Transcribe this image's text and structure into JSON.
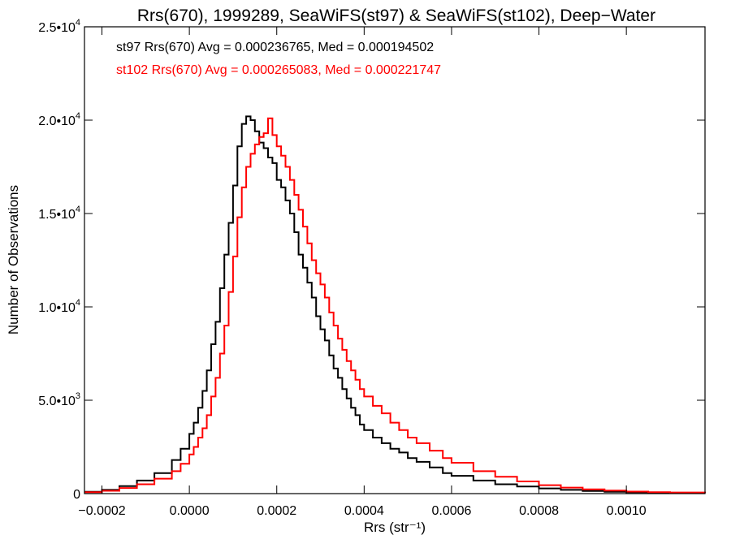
{
  "chart_data": {
    "type": "line",
    "title": "Rrs(670), 1999289, SeaWiFS(st97) & SeaWiFS(st102), Deep−Water",
    "xlabel": "Rrs (str⁻¹)",
    "ylabel": "Number of Observations",
    "xlim": [
      -0.00024,
      0.00118
    ],
    "ylim": [
      0,
      25000
    ],
    "x_ticks": [
      {
        "value": -0.0002,
        "label": "−0.0002"
      },
      {
        "value": 0.0,
        "label": "0.0000"
      },
      {
        "value": 0.0002,
        "label": "0.0002"
      },
      {
        "value": 0.0004,
        "label": "0.0004"
      },
      {
        "value": 0.0006,
        "label": "0.0006"
      },
      {
        "value": 0.0008,
        "label": "0.0008"
      },
      {
        "value": 0.001,
        "label": "0.0010"
      }
    ],
    "y_ticks": [
      {
        "value": 0,
        "mant": "0",
        "exp": ""
      },
      {
        "value": 5000,
        "mant": "5.0•10",
        "exp": "3"
      },
      {
        "value": 10000,
        "mant": "1.0•10",
        "exp": "4"
      },
      {
        "value": 15000,
        "mant": "1.5•10",
        "exp": "4"
      },
      {
        "value": 20000,
        "mant": "2.0•10",
        "exp": "4"
      },
      {
        "value": 25000,
        "mant": "2.5•10",
        "exp": "4"
      }
    ],
    "grid": false,
    "annotations": [
      {
        "text": "st97 Rrs(670) Avg = 0.000236765, Med = 0.000194502",
        "color": "#000000"
      },
      {
        "text": "st102 Rrs(670) Avg = 0.000265083, Med = 0.000221747",
        "color": "#ff0000"
      }
    ],
    "series": [
      {
        "color": "#000000",
        "style": "step",
        "x": [
          -0.00024,
          -0.0002,
          -0.00016,
          -0.00012,
          -8e-05,
          -4e-05,
          -2e-05,
          0.0,
          1e-05,
          2e-05,
          3e-05,
          4e-05,
          5e-05,
          6e-05,
          7e-05,
          8e-05,
          9e-05,
          0.0001,
          0.00011,
          0.00012,
          0.00013,
          0.00014,
          0.00015,
          0.00016,
          0.00017,
          0.00018,
          0.00019,
          0.0002,
          0.00021,
          0.00022,
          0.00023,
          0.00024,
          0.00025,
          0.00026,
          0.00027,
          0.00028,
          0.00029,
          0.0003,
          0.00031,
          0.00032,
          0.00033,
          0.00034,
          0.00035,
          0.00036,
          0.00037,
          0.00038,
          0.00039,
          0.0004,
          0.00042,
          0.00044,
          0.00046,
          0.00048,
          0.0005,
          0.00052,
          0.00055,
          0.00058,
          0.0006,
          0.00065,
          0.0007,
          0.00075,
          0.0008,
          0.00085,
          0.0009,
          0.00095,
          0.001,
          0.00105,
          0.0011,
          0.00118
        ],
        "y": [
          100,
          200,
          400,
          700,
          1100,
          1800,
          2400,
          3200,
          3800,
          4600,
          5500,
          6600,
          8000,
          9200,
          11000,
          12800,
          14500,
          16500,
          18600,
          19800,
          20200,
          20000,
          19400,
          18800,
          18500,
          18000,
          17700,
          16800,
          16400,
          15700,
          15000,
          14000,
          12800,
          12100,
          11300,
          10500,
          9500,
          8800,
          8200,
          7400,
          6700,
          6200,
          5600,
          5100,
          4600,
          4200,
          3700,
          3400,
          3000,
          2700,
          2400,
          2200,
          1900,
          1700,
          1400,
          1100,
          950,
          700,
          500,
          380,
          280,
          200,
          140,
          100,
          70,
          50,
          40,
          30
        ]
      },
      {
        "color": "#ff0000",
        "style": "step",
        "x": [
          -0.00024,
          -0.0002,
          -0.00016,
          -0.00012,
          -8e-05,
          -4e-05,
          -2e-05,
          0.0,
          1e-05,
          2e-05,
          3e-05,
          4e-05,
          5e-05,
          6e-05,
          7e-05,
          8e-05,
          9e-05,
          0.0001,
          0.00011,
          0.00012,
          0.00013,
          0.00014,
          0.00015,
          0.00016,
          0.00017,
          0.00018,
          0.00019,
          0.0002,
          0.00021,
          0.00022,
          0.00023,
          0.00024,
          0.00025,
          0.00026,
          0.00027,
          0.00028,
          0.00029,
          0.0003,
          0.00031,
          0.00032,
          0.00033,
          0.00034,
          0.00035,
          0.00036,
          0.00037,
          0.00038,
          0.00039,
          0.0004,
          0.00042,
          0.00044,
          0.00046,
          0.00048,
          0.0005,
          0.00052,
          0.00055,
          0.00058,
          0.0006,
          0.00065,
          0.0007,
          0.00075,
          0.0008,
          0.00085,
          0.0009,
          0.00095,
          0.001,
          0.00105,
          0.0011,
          0.00118
        ],
        "y": [
          80,
          150,
          300,
          500,
          800,
          1200,
          1600,
          2100,
          2500,
          3000,
          3500,
          4200,
          5200,
          6200,
          7500,
          9000,
          10800,
          12700,
          14800,
          16400,
          17500,
          18200,
          18700,
          19100,
          19300,
          20100,
          19200,
          18600,
          18100,
          17500,
          16800,
          16000,
          15200,
          14300,
          13400,
          12500,
          11800,
          11200,
          10500,
          9700,
          9000,
          8300,
          7700,
          7100,
          6600,
          6100,
          5600,
          5200,
          4700,
          4300,
          3800,
          3400,
          3000,
          2700,
          2300,
          1900,
          1650,
          1200,
          900,
          650,
          450,
          320,
          230,
          160,
          110,
          80,
          60,
          40
        ]
      }
    ]
  }
}
